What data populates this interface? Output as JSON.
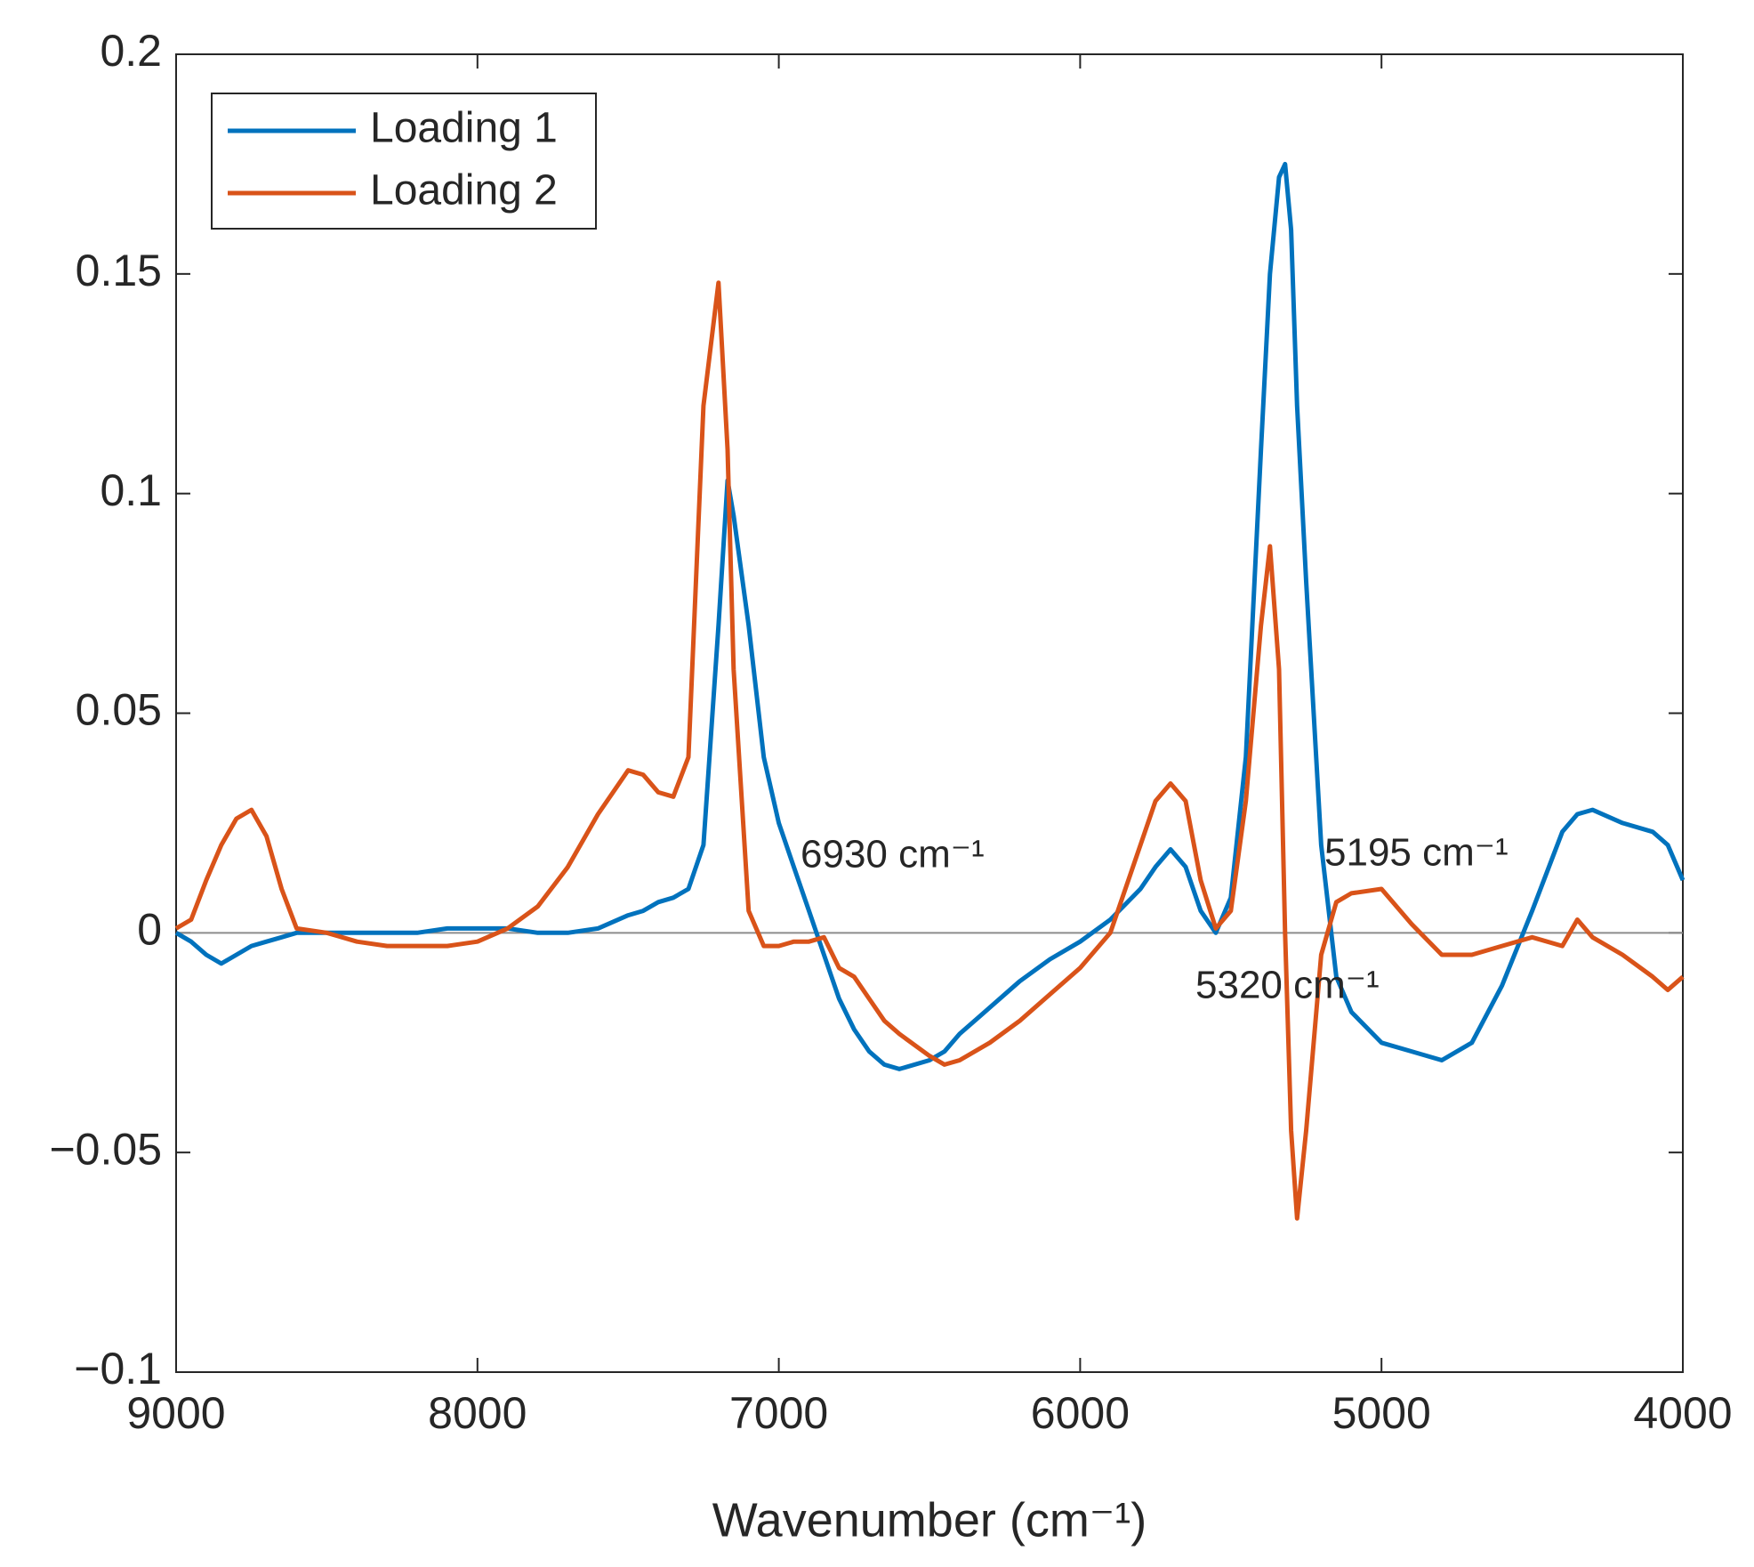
{
  "chart_data": {
    "type": "line",
    "xlabel": "Wavenumber (cm⁻¹)",
    "xlim": [
      9000,
      4000
    ],
    "xticks": [
      9000,
      8000,
      7000,
      6000,
      5000,
      4000
    ],
    "ylim": [
      -0.1,
      0.2
    ],
    "yticks": [
      {
        "value": -0.1,
        "label": "−0.1"
      },
      {
        "value": -0.05,
        "label": "−0.05"
      },
      0,
      0.05,
      0.1,
      0.15,
      0.2
    ],
    "legend": "upper left",
    "annotations": [
      "6930 cm⁻¹",
      "5195 cm⁻¹",
      "5320 cm⁻¹"
    ],
    "x": [
      9000,
      8950,
      8900,
      8850,
      8800,
      8750,
      8700,
      8650,
      8600,
      8500,
      8400,
      8300,
      8200,
      8100,
      8000,
      7900,
      7800,
      7700,
      7600,
      7500,
      7450,
      7400,
      7350,
      7300,
      7250,
      7200,
      7170,
      7150,
      7100,
      7050,
      7000,
      6950,
      6900,
      6850,
      6800,
      6750,
      6700,
      6650,
      6600,
      6500,
      6450,
      6400,
      6300,
      6200,
      6100,
      6000,
      5900,
      5800,
      5750,
      5700,
      5650,
      5600,
      5550,
      5500,
      5450,
      5400,
      5370,
      5340,
      5320,
      5300,
      5280,
      5250,
      5200,
      5150,
      5100,
      5000,
      4900,
      4800,
      4700,
      4600,
      4500,
      4400,
      4350,
      4300,
      4200,
      4100,
      4050,
      4000
    ],
    "series": [
      {
        "name": "Loading 1",
        "color": "#0072bd",
        "values": [
          0,
          -0.002,
          -0.005,
          -0.007,
          -0.005,
          -0.003,
          -0.002,
          -0.001,
          0,
          0,
          0,
          0,
          0,
          0.001,
          0.001,
          0.001,
          0,
          0,
          0.001,
          0.004,
          0.005,
          0.007,
          0.008,
          0.01,
          0.02,
          0.07,
          0.103,
          0.095,
          0.07,
          0.04,
          0.025,
          0.015,
          0.005,
          -0.005,
          -0.015,
          -0.022,
          -0.027,
          -0.03,
          -0.031,
          -0.029,
          -0.027,
          -0.023,
          -0.017,
          -0.011,
          -0.006,
          -0.002,
          0.003,
          0.01,
          0.015,
          0.019,
          0.015,
          0.005,
          0,
          0.008,
          0.04,
          0.11,
          0.15,
          0.172,
          0.175,
          0.16,
          0.12,
          0.08,
          0.02,
          -0.01,
          -0.018,
          -0.025,
          -0.027,
          -0.029,
          -0.025,
          -0.012,
          0.005,
          0.023,
          0.027,
          0.028,
          0.025,
          0.023,
          0.02,
          0.012
        ]
      },
      {
        "name": "Loading 2",
        "color": "#d95319",
        "values": [
          0.001,
          0.003,
          0.012,
          0.02,
          0.026,
          0.028,
          0.022,
          0.01,
          0.001,
          0,
          -0.002,
          -0.003,
          -0.003,
          -0.003,
          -0.002,
          0.001,
          0.006,
          0.015,
          0.027,
          0.037,
          0.036,
          0.032,
          0.031,
          0.04,
          0.12,
          0.148,
          0.11,
          0.06,
          0.005,
          -0.003,
          -0.003,
          -0.002,
          -0.002,
          -0.001,
          -0.008,
          -0.01,
          -0.015,
          -0.02,
          -0.023,
          -0.028,
          -0.03,
          -0.029,
          -0.025,
          -0.02,
          -0.014,
          -0.008,
          0,
          0.02,
          0.03,
          0.034,
          0.03,
          0.012,
          0.001,
          0.005,
          0.03,
          0.07,
          0.088,
          0.06,
          0,
          -0.045,
          -0.065,
          -0.045,
          -0.005,
          0.007,
          0.009,
          0.01,
          0.002,
          -0.005,
          -0.005,
          -0.003,
          -0.001,
          -0.003,
          0.003,
          -0.001,
          -0.005,
          -0.01,
          -0.013,
          -0.01
        ]
      }
    ]
  }
}
